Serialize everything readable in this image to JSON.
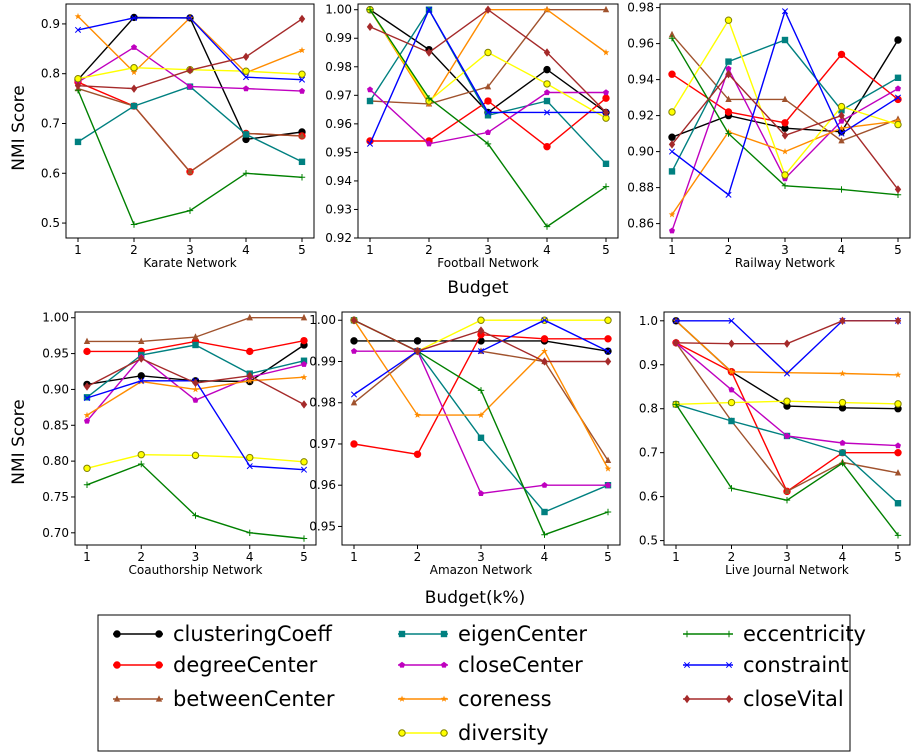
{
  "figure": {
    "ylabel": "NMI Score",
    "row_xlabels": [
      "Budget",
      "Budget(k%)"
    ]
  },
  "legend": {
    "placement": "bottom-center",
    "entries": [
      {
        "name": "clusteringCoeff",
        "color": "#000000",
        "marker": "circle"
      },
      {
        "name": "degreeCenter",
        "color": "#ff0000",
        "marker": "circle"
      },
      {
        "name": "betweenCenter",
        "color": "#a0522d",
        "marker": "triangle"
      },
      {
        "name": "eigenCenter",
        "color": "#008080",
        "marker": "square"
      },
      {
        "name": "closeCenter",
        "color": "#bf00bf",
        "marker": "pentagon"
      },
      {
        "name": "coreness",
        "color": "#ff8c00",
        "marker": "star"
      },
      {
        "name": "diversity",
        "color": "#ffff00",
        "marker": "circle-open"
      },
      {
        "name": "eccentricity",
        "color": "#008000",
        "marker": "plus"
      },
      {
        "name": "constraint",
        "color": "#0000ff",
        "marker": "x"
      },
      {
        "name": "closeVital",
        "color": "#a52a2a",
        "marker": "diamond"
      }
    ]
  },
  "chart_data": [
    {
      "type": "line",
      "xlabel": "Karate Network",
      "x": [
        1,
        2,
        3,
        4,
        5
      ],
      "ylim": [
        0.47,
        0.94
      ],
      "yticks": [
        0.5,
        0.6,
        0.7,
        0.8,
        0.9
      ],
      "ytick_labels": [
        "0.5",
        "0.6",
        "0.7",
        "0.8",
        "0.9"
      ],
      "series": [
        {
          "name": "clusteringCoeff",
          "values": [
            0.788,
            0.913,
            0.912,
            0.668,
            0.683
          ]
        },
        {
          "name": "degreeCenter",
          "values": [
            0.783,
            0.735,
            0.603,
            0.68,
            0.675
          ]
        },
        {
          "name": "betweenCenter",
          "values": [
            0.77,
            0.735,
            0.603,
            0.68,
            0.675
          ]
        },
        {
          "name": "eigenCenter",
          "values": [
            0.663,
            0.735,
            0.774,
            0.678,
            0.623
          ]
        },
        {
          "name": "closeCenter",
          "values": [
            0.783,
            0.853,
            0.774,
            0.77,
            0.765
          ]
        },
        {
          "name": "coreness",
          "values": [
            0.915,
            0.803,
            0.912,
            0.802,
            0.847
          ]
        },
        {
          "name": "diversity",
          "values": [
            0.79,
            0.812,
            0.808,
            0.805,
            0.799
          ]
        },
        {
          "name": "eccentricity",
          "values": [
            0.767,
            0.497,
            0.525,
            0.6,
            0.592
          ]
        },
        {
          "name": "constraint",
          "values": [
            0.888,
            0.912,
            0.912,
            0.793,
            0.788
          ]
        },
        {
          "name": "closeVital",
          "values": [
            0.776,
            0.77,
            0.807,
            0.834,
            0.91
          ]
        }
      ]
    },
    {
      "type": "line",
      "xlabel": "Football Network",
      "x": [
        1,
        2,
        3,
        4,
        5
      ],
      "ylim": [
        0.92,
        1.002
      ],
      "yticks": [
        0.92,
        0.93,
        0.94,
        0.95,
        0.96,
        0.97,
        0.98,
        0.99,
        1.0
      ],
      "ytick_labels": [
        "0.92",
        "0.93",
        "0.94",
        "0.95",
        "0.96",
        "0.97",
        "0.98",
        "0.99",
        "1.00"
      ],
      "series": [
        {
          "name": "clusteringCoeff",
          "values": [
            1.0,
            0.986,
            0.964,
            0.979,
            0.964
          ]
        },
        {
          "name": "degreeCenter",
          "values": [
            0.954,
            0.954,
            0.968,
            0.952,
            0.969
          ]
        },
        {
          "name": "betweenCenter",
          "values": [
            0.968,
            0.967,
            0.973,
            1.0,
            1.0
          ]
        },
        {
          "name": "eigenCenter",
          "values": [
            0.968,
            1.0,
            0.963,
            0.968,
            0.946
          ]
        },
        {
          "name": "closeCenter",
          "values": [
            0.972,
            0.953,
            0.957,
            0.971,
            0.971
          ]
        },
        {
          "name": "coreness",
          "values": [
            1.0,
            0.967,
            1.0,
            1.0,
            0.985
          ]
        },
        {
          "name": "diversity",
          "values": [
            1.0,
            0.968,
            0.985,
            0.974,
            0.962
          ]
        },
        {
          "name": "eccentricity",
          "values": [
            1.0,
            0.969,
            0.953,
            0.924,
            0.938
          ]
        },
        {
          "name": "constraint",
          "values": [
            0.953,
            1.0,
            0.964,
            0.964,
            0.964
          ]
        },
        {
          "name": "closeVital",
          "values": [
            0.994,
            0.985,
            1.0,
            0.985,
            0.964
          ]
        }
      ]
    },
    {
      "type": "line",
      "xlabel": "Railway Network",
      "x": [
        1,
        2,
        3,
        4,
        5
      ],
      "ylim": [
        0.852,
        0.982
      ],
      "yticks": [
        0.86,
        0.88,
        0.9,
        0.92,
        0.94,
        0.96,
        0.98
      ],
      "ytick_labels": [
        "0.86",
        "0.88",
        "0.90",
        "0.92",
        "0.94",
        "0.96",
        "0.98"
      ],
      "series": [
        {
          "name": "clusteringCoeff",
          "values": [
            0.908,
            0.92,
            0.913,
            0.911,
            0.962
          ]
        },
        {
          "name": "degreeCenter",
          "values": [
            0.943,
            0.922,
            0.916,
            0.954,
            0.929
          ]
        },
        {
          "name": "betweenCenter",
          "values": [
            0.965,
            0.929,
            0.929,
            0.906,
            0.918
          ]
        },
        {
          "name": "eigenCenter",
          "values": [
            0.889,
            0.95,
            0.962,
            0.923,
            0.941
          ]
        },
        {
          "name": "closeCenter",
          "values": [
            0.856,
            0.946,
            0.885,
            0.917,
            0.935
          ]
        },
        {
          "name": "coreness",
          "values": [
            0.865,
            0.911,
            0.9,
            0.913,
            0.917
          ]
        },
        {
          "name": "diversity",
          "values": [
            0.922,
            0.973,
            0.887,
            0.925,
            0.915
          ]
        },
        {
          "name": "eccentricity",
          "values": [
            0.963,
            0.91,
            0.881,
            0.879,
            0.876
          ]
        },
        {
          "name": "constraint",
          "values": [
            0.9,
            0.876,
            0.978,
            0.91,
            0.93
          ]
        },
        {
          "name": "closeVital",
          "values": [
            0.904,
            0.943,
            0.909,
            0.92,
            0.879
          ]
        }
      ]
    },
    {
      "type": "line",
      "xlabel": "Coauthorship Network",
      "x": [
        1,
        2,
        3,
        4,
        5
      ],
      "ylim": [
        0.683,
        1.008
      ],
      "yticks": [
        0.7,
        0.75,
        0.8,
        0.85,
        0.9,
        0.95,
        1.0
      ],
      "ytick_labels": [
        "0.70",
        "0.75",
        "0.80",
        "0.85",
        "0.90",
        "0.95",
        "1.00"
      ],
      "series": [
        {
          "name": "clusteringCoeff",
          "values": [
            0.907,
            0.919,
            0.912,
            0.911,
            0.962
          ]
        },
        {
          "name": "degreeCenter",
          "values": [
            0.953,
            0.953,
            0.967,
            0.953,
            0.968
          ]
        },
        {
          "name": "betweenCenter",
          "values": [
            0.967,
            0.967,
            0.973,
            1.0,
            1.0
          ]
        },
        {
          "name": "eigenCenter",
          "values": [
            0.889,
            0.948,
            0.962,
            0.922,
            0.94
          ]
        },
        {
          "name": "closeCenter",
          "values": [
            0.856,
            0.945,
            0.885,
            0.917,
            0.935
          ]
        },
        {
          "name": "coreness",
          "values": [
            0.864,
            0.911,
            0.9,
            0.912,
            0.917
          ]
        },
        {
          "name": "diversity",
          "values": [
            0.79,
            0.809,
            0.808,
            0.805,
            0.799
          ]
        },
        {
          "name": "eccentricity",
          "values": [
            0.767,
            0.796,
            0.724,
            0.7,
            0.692
          ]
        },
        {
          "name": "constraint",
          "values": [
            0.888,
            0.912,
            0.912,
            0.793,
            0.788
          ]
        },
        {
          "name": "closeVital",
          "values": [
            0.904,
            0.943,
            0.909,
            0.919,
            0.879
          ]
        }
      ]
    },
    {
      "type": "line",
      "xlabel": "Amazon Network",
      "x": [
        1,
        2,
        3,
        4,
        5
      ],
      "ylim": [
        0.9455,
        1.002
      ],
      "yticks": [
        0.95,
        0.96,
        0.97,
        0.98,
        0.99,
        1.0
      ],
      "ytick_labels": [
        "0.95",
        "0.96",
        "0.97",
        "0.98",
        "0.99",
        "1.00"
      ],
      "series": [
        {
          "name": "clusteringCoeff",
          "values": [
            0.995,
            0.995,
            0.995,
            0.995,
            0.9925
          ]
        },
        {
          "name": "degreeCenter",
          "values": [
            0.97,
            0.9675,
            0.9965,
            0.9955,
            0.9955
          ]
        },
        {
          "name": "betweenCenter",
          "values": [
            0.98,
            0.9925,
            0.9925,
            0.99,
            0.966
          ]
        },
        {
          "name": "eigenCenter",
          "values": [
            1.0,
            0.9925,
            0.9715,
            0.9535,
            0.96
          ]
        },
        {
          "name": "closeCenter",
          "values": [
            0.9925,
            0.9925,
            0.958,
            0.96,
            0.96
          ]
        },
        {
          "name": "coreness",
          "values": [
            1.0,
            0.977,
            0.977,
            0.9925,
            0.964
          ]
        },
        {
          "name": "diversity",
          "values": [
            1.0,
            0.9925,
            1.0,
            1.0,
            1.0
          ]
        },
        {
          "name": "eccentricity",
          "values": [
            1.0,
            0.9925,
            0.983,
            0.948,
            0.9535
          ]
        },
        {
          "name": "constraint",
          "values": [
            0.982,
            0.9925,
            0.9925,
            1.0,
            0.9925
          ]
        },
        {
          "name": "closeVital",
          "values": [
            1.0,
            0.9925,
            0.9975,
            0.99,
            0.99
          ]
        }
      ]
    },
    {
      "type": "line",
      "xlabel": "Live Journal Network",
      "x": [
        1,
        2,
        3,
        4,
        5
      ],
      "ylim": [
        0.49,
        1.02
      ],
      "yticks": [
        0.5,
        0.6,
        0.7,
        0.8,
        0.9,
        1.0
      ],
      "ytick_labels": [
        "0.5",
        "0.6",
        "0.7",
        "0.8",
        "0.9",
        "1.0"
      ],
      "series": [
        {
          "name": "clusteringCoeff",
          "values": [
            1.0,
            0.884,
            0.806,
            0.802,
            0.8
          ]
        },
        {
          "name": "degreeCenter",
          "values": [
            0.95,
            0.884,
            0.612,
            0.7,
            0.7
          ]
        },
        {
          "name": "betweenCenter",
          "values": [
            0.95,
            0.772,
            0.612,
            0.678,
            0.654
          ]
        },
        {
          "name": "eigenCenter",
          "values": [
            0.81,
            0.772,
            0.738,
            0.7,
            0.585
          ]
        },
        {
          "name": "closeCenter",
          "values": [
            0.95,
            0.843,
            0.738,
            0.722,
            0.716
          ]
        },
        {
          "name": "coreness",
          "values": [
            1.0,
            0.884,
            0.882,
            0.88,
            0.877
          ]
        },
        {
          "name": "diversity",
          "values": [
            0.81,
            0.814,
            0.817,
            0.814,
            0.811
          ]
        },
        {
          "name": "eccentricity",
          "values": [
            0.81,
            0.619,
            0.592,
            0.676,
            0.512
          ]
        },
        {
          "name": "constraint",
          "values": [
            1.0,
            1.0,
            0.88,
            1.0,
            1.0
          ]
        },
        {
          "name": "closeVital",
          "values": [
            0.95,
            0.948,
            0.948,
            1.0,
            1.0
          ]
        }
      ]
    }
  ]
}
